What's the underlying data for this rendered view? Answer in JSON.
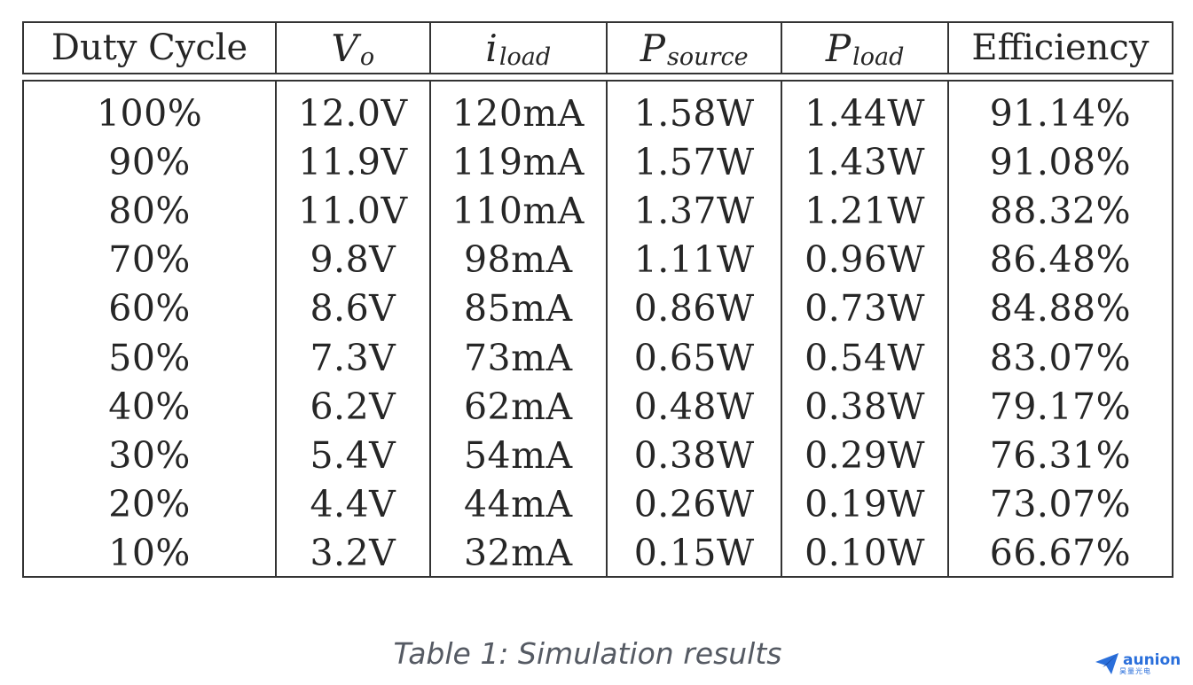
{
  "table": {
    "headers": [
      {
        "main": "Duty Cycle",
        "sub": "",
        "math": false
      },
      {
        "main": "V",
        "sub": "o",
        "math": true
      },
      {
        "main": "i",
        "sub": "load",
        "math": true
      },
      {
        "main": "P",
        "sub": "source",
        "math": true
      },
      {
        "main": "P",
        "sub": "load",
        "math": true
      },
      {
        "main": "Efficiency",
        "sub": "",
        "math": false
      }
    ],
    "rows": [
      [
        "100%",
        "12.0V",
        "120mA",
        "1.58W",
        "1.44W",
        "91.14%"
      ],
      [
        "90%",
        "11.9V",
        "119mA",
        "1.57W",
        "1.43W",
        "91.08%"
      ],
      [
        "80%",
        "11.0V",
        "110mA",
        "1.37W",
        "1.21W",
        "88.32%"
      ],
      [
        "70%",
        "9.8V",
        "98mA",
        "1.11W",
        "0.96W",
        "86.48%"
      ],
      [
        "60%",
        "8.6V",
        "85mA",
        "0.86W",
        "0.73W",
        "84.88%"
      ],
      [
        "50%",
        "7.3V",
        "73mA",
        "0.65W",
        "0.54W",
        "83.07%"
      ],
      [
        "40%",
        "6.2V",
        "62mA",
        "0.48W",
        "0.38W",
        "79.17%"
      ],
      [
        "30%",
        "5.4V",
        "54mA",
        "0.38W",
        "0.29W",
        "76.31%"
      ],
      [
        "20%",
        "4.4V",
        "44mA",
        "0.26W",
        "0.19W",
        "73.07%"
      ],
      [
        "10%",
        "3.2V",
        "32mA",
        "0.15W",
        "0.10W",
        "66.67%"
      ]
    ]
  },
  "caption": "Table 1: Simulation results",
  "logo": {
    "text": "aunion",
    "subtext": "昊量光电",
    "color": "#2a6fdb",
    "icon": "paper-plane-icon"
  }
}
